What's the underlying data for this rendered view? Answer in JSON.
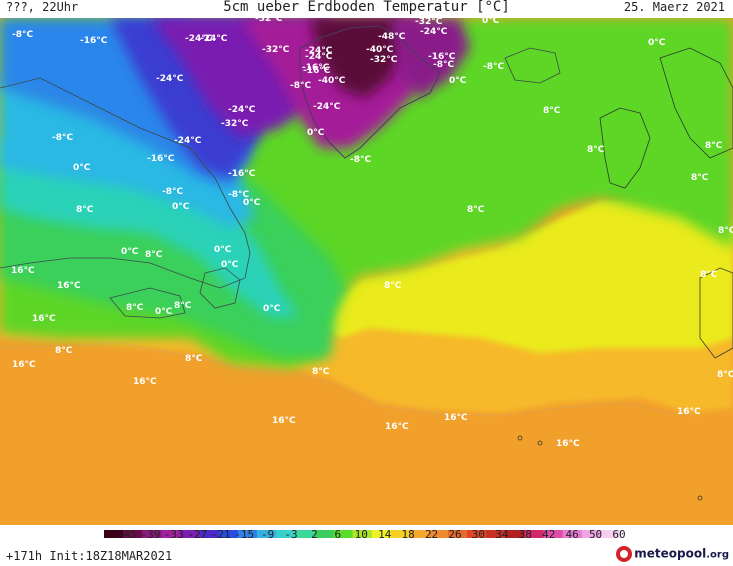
{
  "header": {
    "left": "???, 22Uhr",
    "title": "5cm ueber Erdboden Temperatur [°C]",
    "right": "25. Maerz 2021"
  },
  "map_labels": [
    {
      "text": "-8°C"
    },
    {
      "text": "-16°C"
    },
    {
      "text": "-24°C"
    },
    {
      "text": "-24°C"
    },
    {
      "text": "-32°C"
    },
    {
      "text": "-32°C"
    },
    {
      "text": "-24°C"
    },
    {
      "text": "-24°C"
    },
    {
      "text": "-16°C"
    },
    {
      "text": "-8°C"
    },
    {
      "text": "-40°C"
    },
    {
      "text": "-56°C"
    },
    {
      "text": "-48°C"
    },
    {
      "text": "-40°C"
    },
    {
      "text": "-32°C"
    },
    {
      "text": "-32°C"
    },
    {
      "text": "-24°C"
    },
    {
      "text": "-16°C"
    },
    {
      "text": "-8°C"
    },
    {
      "text": "-8°C"
    },
    {
      "text": "0°C"
    },
    {
      "text": "0°C"
    },
    {
      "text": "-8°C"
    },
    {
      "text": "0°C"
    },
    {
      "text": "-24°C"
    },
    {
      "text": "-24°C"
    },
    {
      "text": "-32°C"
    },
    {
      "text": "-24°C"
    },
    {
      "text": "-16°C"
    },
    {
      "text": "-8°C"
    },
    {
      "text": "0°C"
    },
    {
      "text": "8°C"
    },
    {
      "text": "-8°C"
    },
    {
      "text": "0°C"
    },
    {
      "text": "-24°C"
    },
    {
      "text": "-16°C"
    },
    {
      "text": "-16°C"
    },
    {
      "text": "-8°C"
    },
    {
      "text": "0°C"
    },
    {
      "text": "-8°C"
    },
    {
      "text": "0°C"
    },
    {
      "text": "8°C"
    },
    {
      "text": "8°C"
    },
    {
      "text": "8°C"
    },
    {
      "text": "8°C"
    },
    {
      "text": "8°C"
    },
    {
      "text": "8°C"
    },
    {
      "text": "0°C"
    },
    {
      "text": "8°C"
    },
    {
      "text": "0°C"
    },
    {
      "text": "0°C"
    },
    {
      "text": "16°C"
    },
    {
      "text": "16°C"
    },
    {
      "text": "8°C"
    },
    {
      "text": "16°C"
    },
    {
      "text": "8°C"
    },
    {
      "text": "0°C"
    },
    {
      "text": "8°C"
    },
    {
      "text": "8°C"
    },
    {
      "text": "0°C"
    },
    {
      "text": "8°C"
    },
    {
      "text": "16°C"
    },
    {
      "text": "8°C"
    },
    {
      "text": "16°C"
    },
    {
      "text": "8°C"
    },
    {
      "text": "16°C"
    },
    {
      "text": "16°C"
    },
    {
      "text": "16°C"
    },
    {
      "text": "16°C"
    },
    {
      "text": "16°C"
    },
    {
      "text": "8°C"
    }
  ],
  "colorbar": {
    "ticks": [
      "-45",
      "-39",
      "-33",
      "-27",
      "-21",
      "-15",
      "-9",
      "-3",
      "2",
      "6",
      "10",
      "14",
      "18",
      "22",
      "26",
      "30",
      "34",
      "38",
      "42",
      "46",
      "50",
      "60"
    ],
    "colors": [
      "#3a0018",
      "#6a0a4a",
      "#8a1a7a",
      "#a020a0",
      "#7a1fb0",
      "#4a2bc8",
      "#2a4ae0",
      "#2f7fe8",
      "#35b0e0",
      "#38d0c8",
      "#3ad89a",
      "#3ccd60",
      "#5adc2a",
      "#a8e42a",
      "#eef028",
      "#f5cf22",
      "#f5a82a",
      "#f08a30",
      "#e66a2c",
      "#dd4628",
      "#c83024",
      "#b42020",
      "#d02868",
      "#e04ca8",
      "#e87ad0",
      "#f0a6e4",
      "#f6cef0"
    ]
  },
  "footer": {
    "init": "+171h Init:18Z18MAR2021",
    "brand": "meteopool",
    "brand_suffix": ".org"
  }
}
